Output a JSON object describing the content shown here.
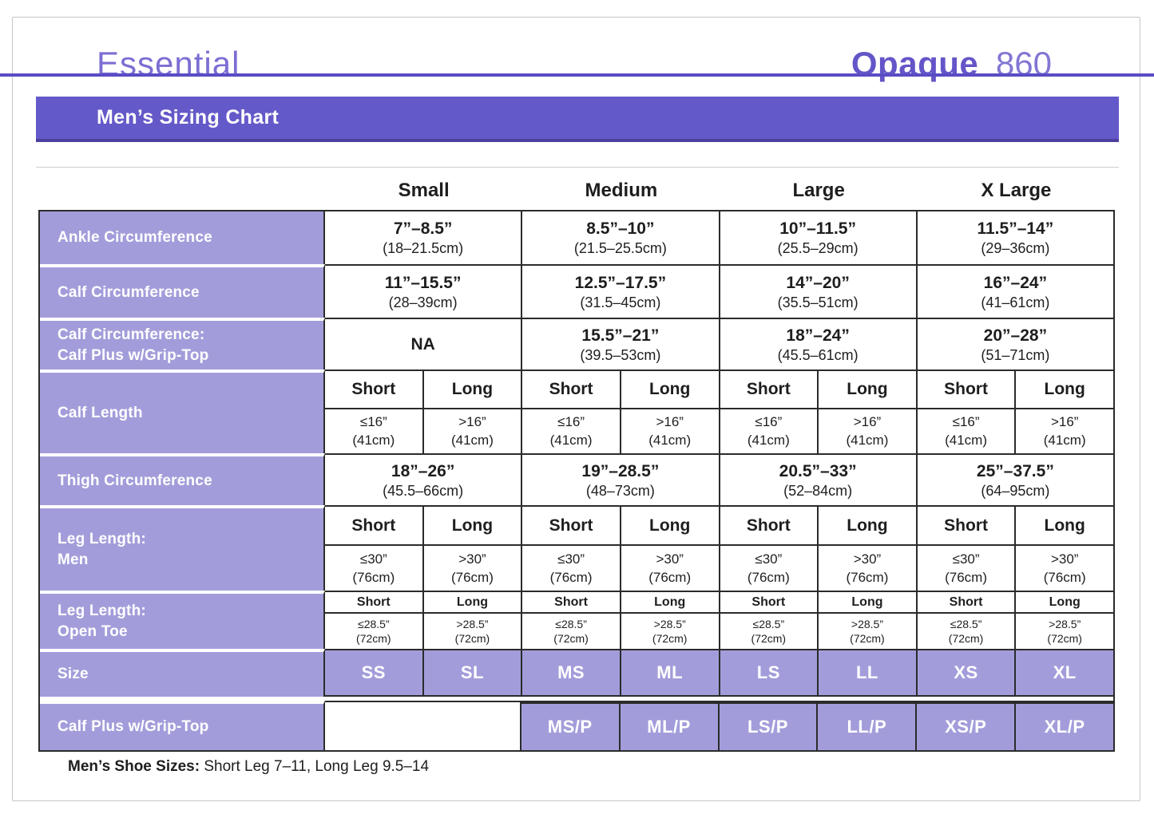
{
  "header": {
    "brand": "Essential",
    "product_name": "Opaque",
    "product_number": "860"
  },
  "banner": {
    "title": "Men’s Sizing Chart"
  },
  "colors": {
    "banner_purple": "#6459c8",
    "banner_bottom_border": "#4c3f9e",
    "accent_rule": "#5a4cc4",
    "brand_purple_bold": "#6455c8",
    "brand_purple_light": "#7b6ed3",
    "row_label_lavender": "#a29dda",
    "table_border": "#2b2b2b",
    "text": "#1e1e1e"
  },
  "table": {
    "size_headers": [
      "Small",
      "Medium",
      "Large",
      "X Large"
    ],
    "rows": [
      {
        "id": "ankle_circumference",
        "label": "Ankle Circumference",
        "cells": [
          {
            "primary": "7”–8.5”",
            "secondary": "(18–21.5cm)"
          },
          {
            "primary": "8.5”–10”",
            "secondary": "(21.5–25.5cm)"
          },
          {
            "primary": "10”–11.5”",
            "secondary": "(25.5–29cm)"
          },
          {
            "primary": "11.5”–14”",
            "secondary": "(29–36cm)"
          }
        ]
      },
      {
        "id": "calf_circumference",
        "label": "Calf Circumference",
        "cells": [
          {
            "primary": "11”–15.5”",
            "secondary": "(28–39cm)"
          },
          {
            "primary": "12.5”–17.5”",
            "secondary": "(31.5–45cm)"
          },
          {
            "primary": "14”–20”",
            "secondary": "(35.5–51cm)"
          },
          {
            "primary": "16”–24”",
            "secondary": "(41–61cm)"
          }
        ]
      },
      {
        "id": "calf_circumference_calf_plus",
        "label": "Calf Circumference:",
        "label2": "Calf Plus w/Grip-Top",
        "cells": [
          {
            "primary": "NA",
            "secondary": ""
          },
          {
            "primary": "15.5”–21”",
            "secondary": "(39.5–53cm)"
          },
          {
            "primary": "18”–24”",
            "secondary": "(45.5–61cm)"
          },
          {
            "primary": "20”–28”",
            "secondary": "(51–71cm)"
          }
        ]
      },
      {
        "id": "calf_length",
        "label": "Calf Length",
        "subheaders": [
          "Short",
          "Long",
          "Short",
          "Long",
          "Short",
          "Long",
          "Short",
          "Long"
        ],
        "cells": [
          {
            "primary": "≤16”",
            "secondary": "(41cm)"
          },
          {
            "primary": ">16”",
            "secondary": "(41cm)"
          },
          {
            "primary": "≤16”",
            "secondary": "(41cm)"
          },
          {
            "primary": ">16”",
            "secondary": "(41cm)"
          },
          {
            "primary": "≤16”",
            "secondary": "(41cm)"
          },
          {
            "primary": ">16”",
            "secondary": "(41cm)"
          },
          {
            "primary": "≤16”",
            "secondary": "(41cm)"
          },
          {
            "primary": ">16”",
            "secondary": "(41cm)"
          }
        ]
      },
      {
        "id": "thigh_circumference",
        "label": "Thigh Circumference",
        "cells": [
          {
            "primary": "18”–26”",
            "secondary": "(45.5–66cm)"
          },
          {
            "primary": "19”–28.5”",
            "secondary": "(48–73cm)"
          },
          {
            "primary": "20.5”–33”",
            "secondary": "(52–84cm)"
          },
          {
            "primary": "25”–37.5”",
            "secondary": "(64–95cm)"
          }
        ]
      },
      {
        "id": "leg_length_men",
        "label": "Leg Length:",
        "label2": "Men",
        "subheaders": [
          "Short",
          "Long",
          "Short",
          "Long",
          "Short",
          "Long",
          "Short",
          "Long"
        ],
        "cells": [
          {
            "primary": "≤30”",
            "secondary": "(76cm)"
          },
          {
            "primary": ">30”",
            "secondary": "(76cm)"
          },
          {
            "primary": "≤30”",
            "secondary": "(76cm)"
          },
          {
            "primary": ">30”",
            "secondary": "(76cm)"
          },
          {
            "primary": "≤30”",
            "secondary": "(76cm)"
          },
          {
            "primary": ">30”",
            "secondary": "(76cm)"
          },
          {
            "primary": "≤30”",
            "secondary": "(76cm)"
          },
          {
            "primary": ">30”",
            "secondary": "(76cm)"
          }
        ]
      },
      {
        "id": "leg_length_open_toe",
        "label": "Leg Length:",
        "label2": "Open Toe",
        "subheaders": [
          "Short",
          "Long",
          "Short",
          "Long",
          "Short",
          "Long",
          "Short",
          "Long"
        ],
        "cells": [
          {
            "primary": "≤28.5”",
            "secondary": "(72cm)"
          },
          {
            "primary": ">28.5”",
            "secondary": "(72cm)"
          },
          {
            "primary": "≤28.5”",
            "secondary": "(72cm)"
          },
          {
            "primary": ">28.5”",
            "secondary": "(72cm)"
          },
          {
            "primary": "≤28.5”",
            "secondary": "(72cm)"
          },
          {
            "primary": ">28.5”",
            "secondary": "(72cm)"
          },
          {
            "primary": "≤28.5”",
            "secondary": "(72cm)"
          },
          {
            "primary": ">28.5”",
            "secondary": "(72cm)"
          }
        ]
      },
      {
        "id": "size",
        "label": "Size",
        "cells": [
          "SS",
          "SL",
          "MS",
          "ML",
          "LS",
          "LL",
          "XS",
          "XL"
        ]
      },
      {
        "id": "calf_plus_size",
        "label": "Calf Plus w/Grip-Top",
        "cells": [
          "",
          "",
          "MS/P",
          "ML/P",
          "LS/P",
          "LL/P",
          "XS/P",
          "XL/P"
        ]
      }
    ]
  },
  "footer": {
    "bold": "Men’s Shoe Sizes:",
    "text": " Short Leg 7–11, Long Leg 9.5–14"
  }
}
